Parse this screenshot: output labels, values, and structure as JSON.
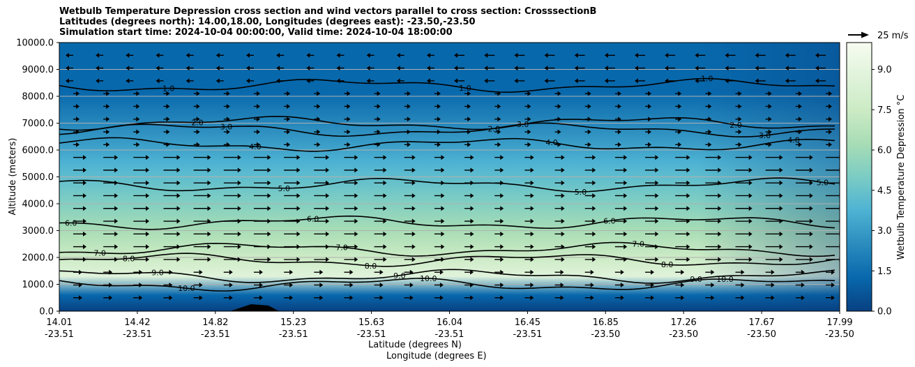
{
  "chart_data": {
    "type": "cross-section contour",
    "title_lines": [
      "Wetbulb Temperature Depression cross section and wind vectors parallel to cross section: CrosssectionB",
      "Latitudes (degrees north): 14.00,18.00, Longitudes (degrees east): -23.50,-23.50",
      "Simulation start time: 2024-10-04 00:00:00, Valid time: 2024-10-04 18:00:00"
    ],
    "ylabel": "Altitude (meters)",
    "xlabel_lat": "Latitude (degrees N)",
    "xlabel_lon": "Longitude (degrees E)",
    "ylim": [
      0,
      10000
    ],
    "yticks": [
      "0.0",
      "1000.0",
      "2000.0",
      "3000.0",
      "4000.0",
      "5000.0",
      "6000.0",
      "7000.0",
      "8000.0",
      "9000.0",
      "10000.0"
    ],
    "xticks_lat": [
      "14.01",
      "14.42",
      "14.82",
      "15.23",
      "15.63",
      "16.04",
      "16.45",
      "16.85",
      "17.26",
      "17.67",
      "17.99"
    ],
    "xticks_lon": [
      "-23.51",
      "-23.51",
      "-23.51",
      "-23.51",
      "-23.51",
      "-23.51",
      "-23.51",
      "-23.50",
      "-23.50",
      "-23.50",
      "-23.50"
    ],
    "grid": "horizontal",
    "colorbar": {
      "label": "Wetbulb Temperature Depression °C",
      "range": [
        0,
        10
      ],
      "ticks": [
        "0.0",
        "1.5",
        "3.0",
        "4.5",
        "6.0",
        "7.5",
        "9.0"
      ],
      "colormap": "GnBu_r",
      "colors": [
        "#084081",
        "#0868ac",
        "#2b8cbe",
        "#4eb3d3",
        "#7bccc4",
        "#a8ddb5",
        "#ccebc5",
        "#e0f3db",
        "#f7fcf0"
      ]
    },
    "contour_labels": [
      "1.0",
      "2.0",
      "3.0",
      "4.0",
      "5.0",
      "6.0",
      "7.0",
      "8.0",
      "9.0",
      "10.0"
    ],
    "contour_levels": [
      {
        "value": 1.0,
        "altitude": 8400
      },
      {
        "value": 2.0,
        "altitude": 7000
      },
      {
        "value": 3.0,
        "altitude": 6750
      },
      {
        "value": 4.0,
        "altitude": 6200
      },
      {
        "value": 5.0,
        "altitude": 4700
      },
      {
        "value": 6.0,
        "altitude": 3300
      },
      {
        "value": 7.0,
        "altitude": 2300
      },
      {
        "value": 8.0,
        "altitude": 1900
      },
      {
        "value": 9.0,
        "altitude": 1300
      },
      {
        "value": 10.0,
        "altitude": 1000
      }
    ],
    "wind_reference": {
      "label": "25 m/s",
      "speed": 25
    }
  }
}
